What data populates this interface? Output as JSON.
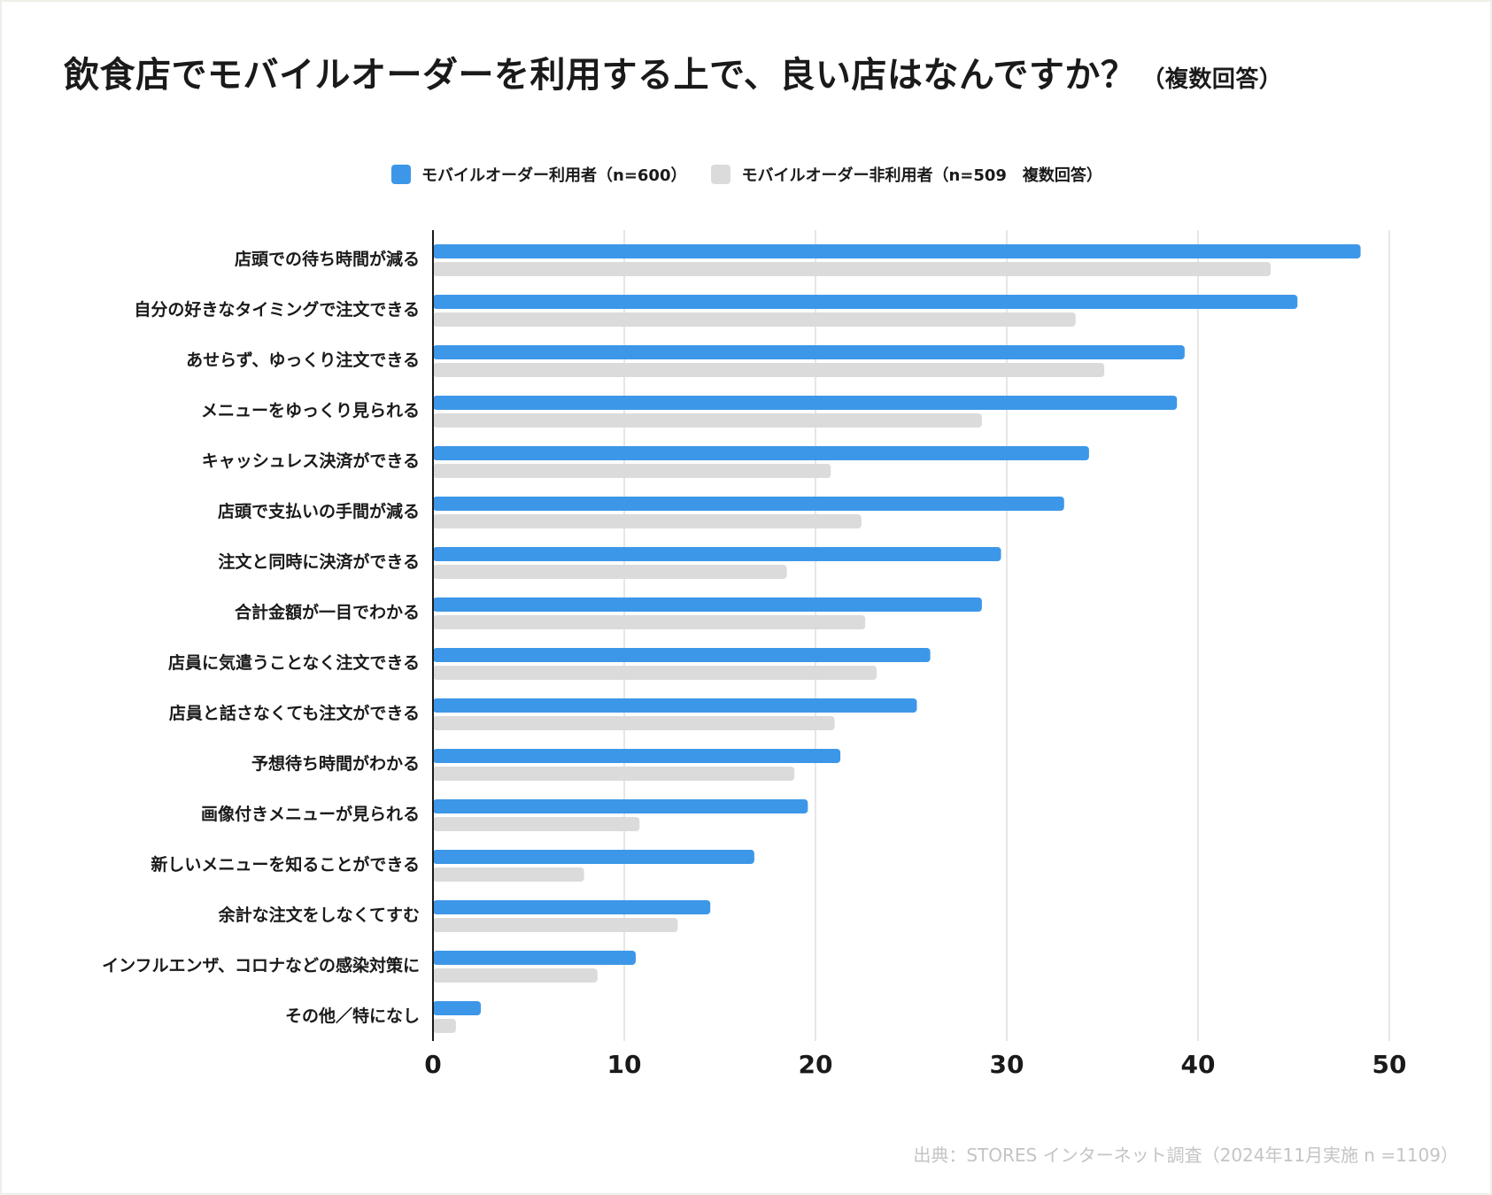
{
  "title": "飲食店でモバイルオーダーを利用する上で、良い店はなんですか？",
  "title_note": "（複数回答）",
  "legend": [
    {
      "label": "モバイルオーダー利用者（n=600）",
      "color": "#3d97e8"
    },
    {
      "label": "モバイルオーダー非利用者（n=509　複数回答）",
      "color": "#dbdbdb"
    }
  ],
  "source": "出典：STORES インターネット調査（2024年11月実施 n =1109）",
  "chart_data": {
    "type": "bar",
    "orientation": "horizontal",
    "title": "飲食店でモバイルオーダーを利用する上で、良い店はなんですか？",
    "xlim": [
      0,
      50
    ],
    "xticks": [
      "0",
      "10",
      "20",
      "30",
      "40",
      "50"
    ],
    "grid": true,
    "categories": [
      "店頭での待ち時間が減る",
      "自分の好きなタイミングで注文できる",
      "あせらず、ゆっくり注文できる",
      "メニューをゆっくり見られる",
      "キャッシュレス決済ができる",
      "店頭で支払いの手間が減る",
      "注文と同時に決済ができる",
      "合計金額が一目でわかる",
      "店員に気遣うことなく注文できる",
      "店員と話さなくても注文ができる",
      "予想待ち時間がわかる",
      "画像付きメニューが見られる",
      "新しいメニューを知ることができる",
      "余計な注文をしなくてすむ",
      "インフルエンザ、コロナなどの感染対策に",
      "その他／特になし"
    ],
    "series": [
      {
        "name": "モバイルオーダー利用者（n=600）",
        "color": "#3d97e8",
        "values": [
          48.5,
          45.2,
          39.3,
          38.9,
          34.3,
          33.0,
          29.7,
          28.7,
          26.0,
          25.3,
          21.3,
          19.6,
          16.8,
          14.5,
          10.6,
          2.5
        ]
      },
      {
        "name": "モバイルオーダー非利用者（n=509　複数回答）",
        "color": "#dbdbdb",
        "values": [
          43.8,
          33.6,
          35.1,
          28.7,
          20.8,
          22.4,
          18.5,
          22.6,
          23.2,
          21.0,
          18.9,
          10.8,
          7.9,
          12.8,
          8.6,
          1.2
        ]
      }
    ]
  }
}
